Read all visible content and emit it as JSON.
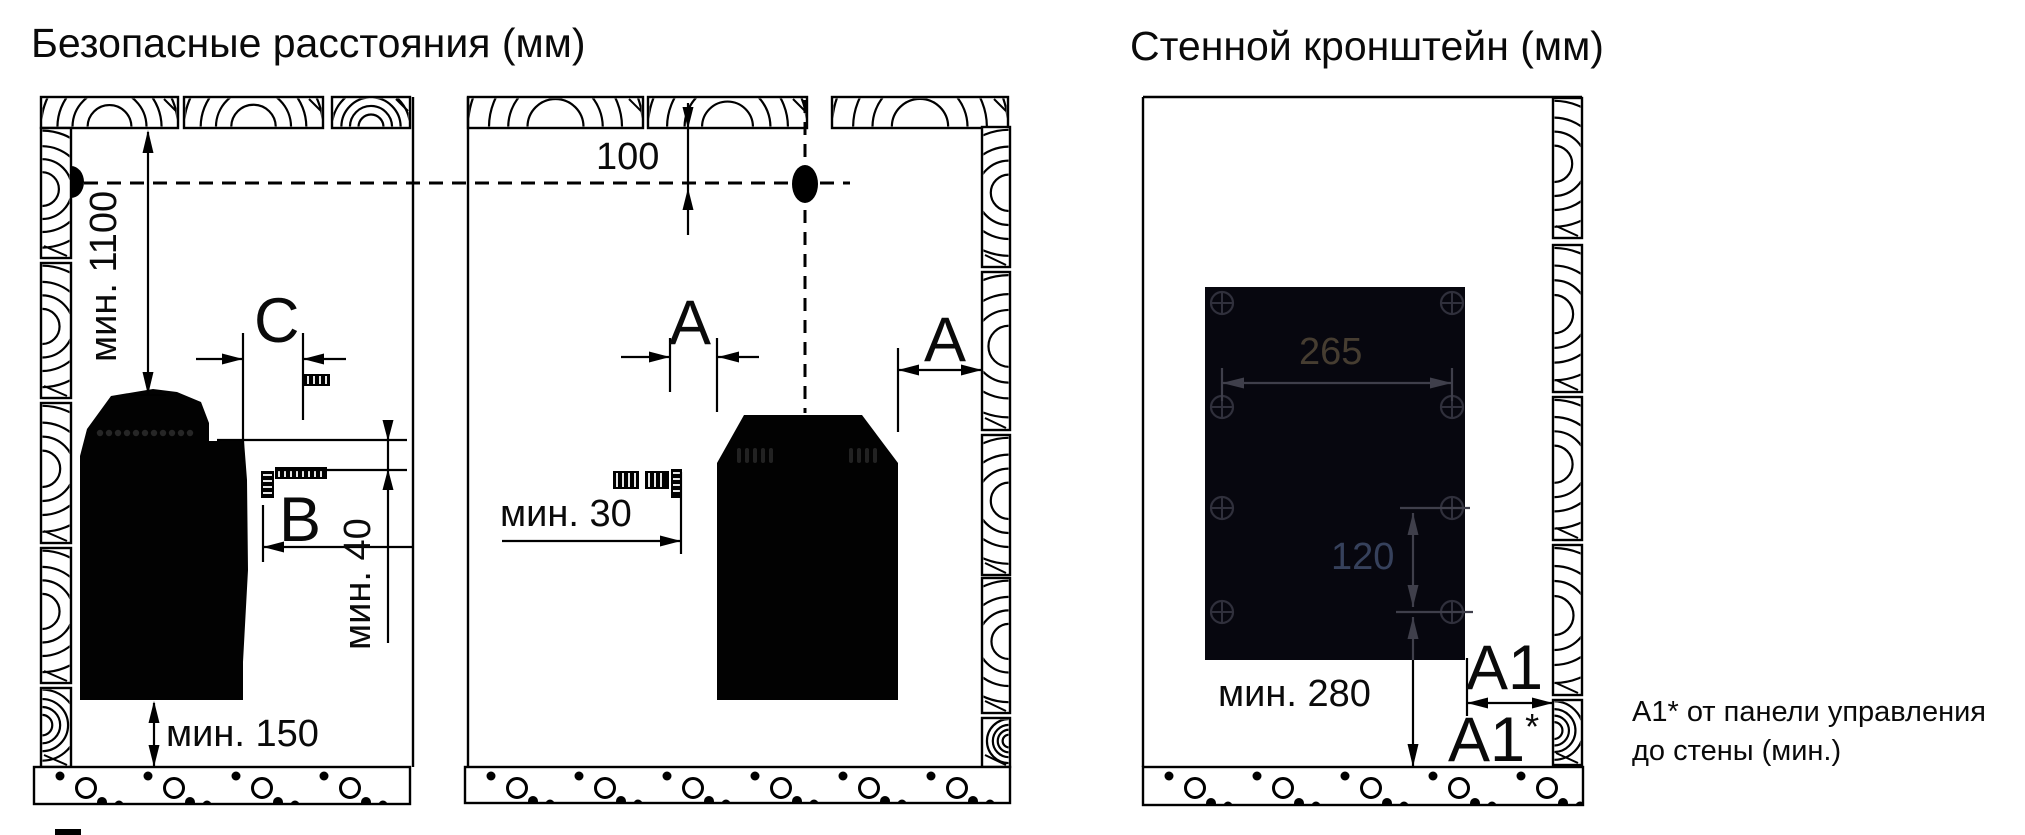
{
  "titles": {
    "left": "Безопасные расстояния (мм)",
    "right": "Стенной кронштейн (мм)"
  },
  "dims": {
    "min1100": "мин. 1100",
    "c": "C",
    "b": "B",
    "min40": "мин. 40",
    "min150": "мин. 150",
    "d100": "100",
    "a_left": "A",
    "a_right": "A",
    "min30": "мин. 30",
    "d265": "265",
    "d120": "120",
    "min280": "мин. 280",
    "a1": "A1",
    "a1s": "A1",
    "star": "*"
  },
  "note": {
    "line1": "А1* от панели управления",
    "line2": "до стены (мин.)"
  },
  "colors": {
    "line": "#000000",
    "background": "#ffffff",
    "bracket_plate": "#07070f",
    "plate_linework": "#3f3f4b",
    "dim265_text": "#463d31",
    "dim120_text": "#36415c"
  }
}
